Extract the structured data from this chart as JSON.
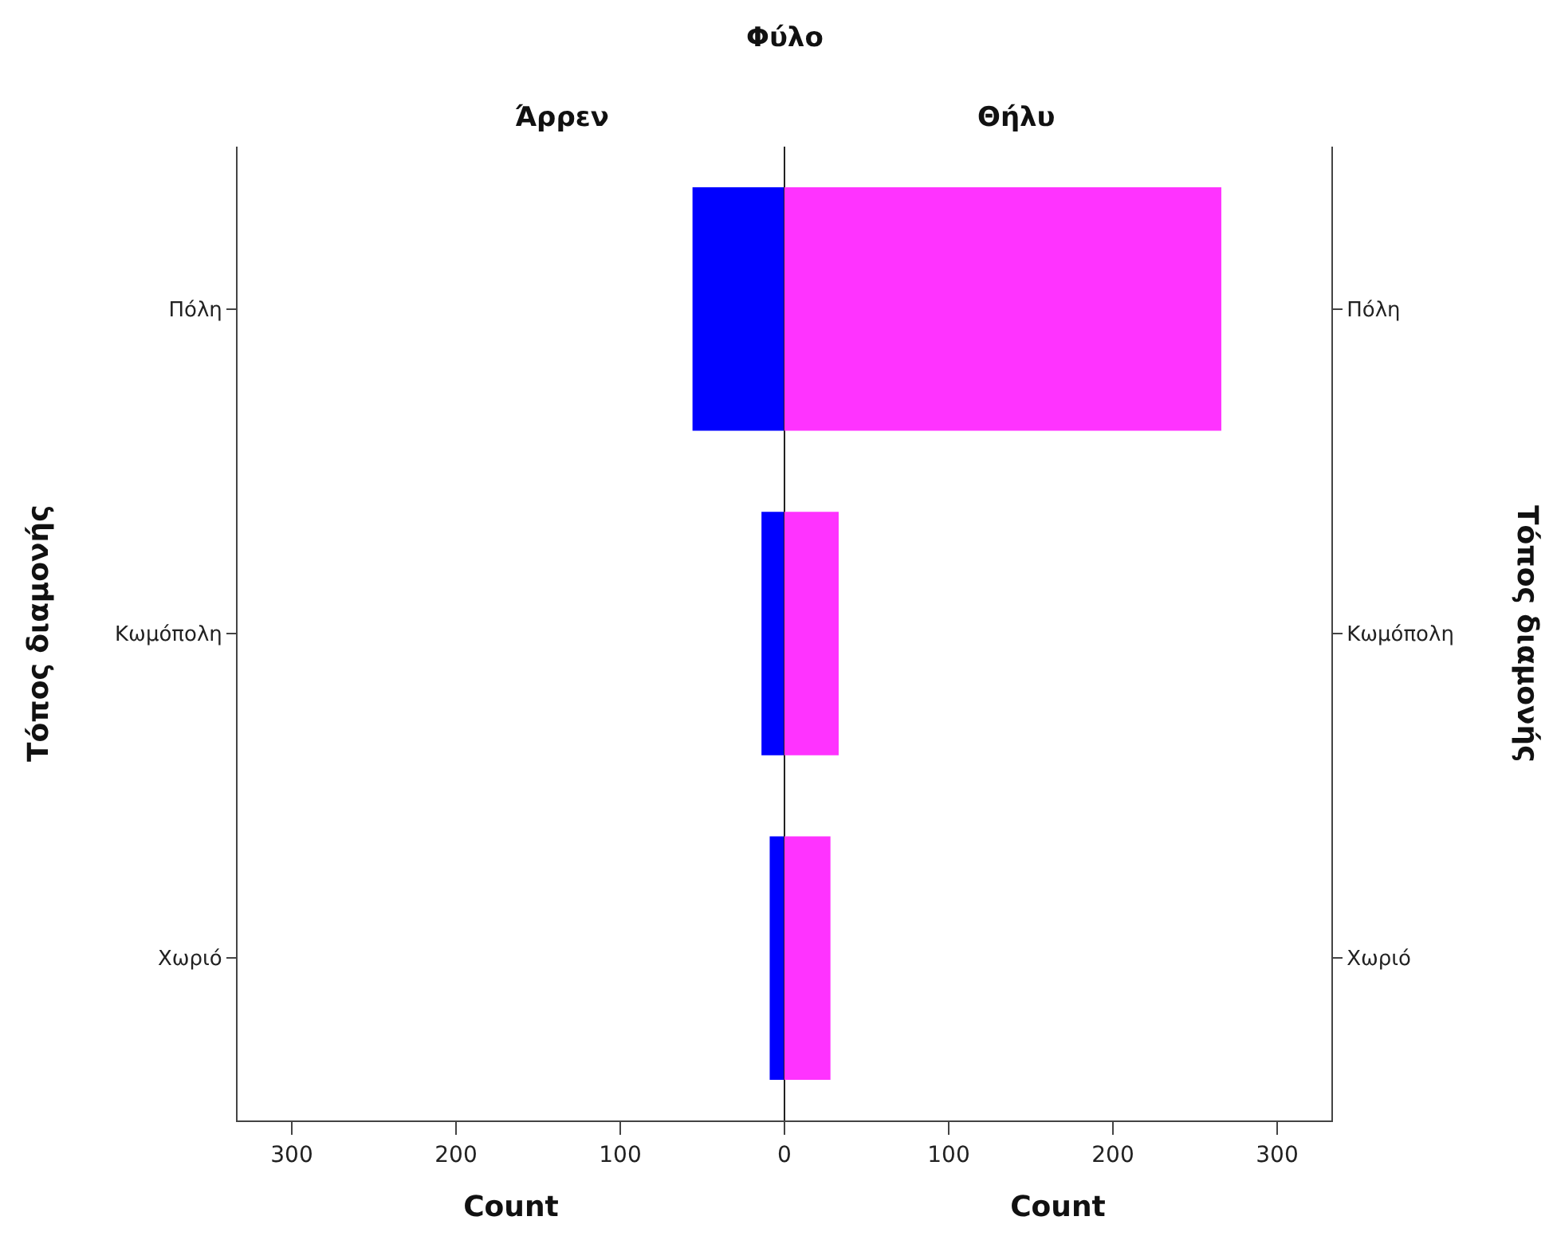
{
  "chart_data": [
    {
      "type": "bar",
      "orientation": "horizontal",
      "title": "Άρρεν",
      "annotations": [
        "Φύλο"
      ],
      "xlabel": "Count",
      "ylabel": "Τόπος διαμονής",
      "categories": [
        "Πόλη",
        "Κωμόπολη",
        "Χωριό"
      ],
      "values": [
        56,
        14,
        9
      ],
      "color": "#0000ff",
      "xlim": [
        333,
        0
      ],
      "xticks": [
        300,
        200,
        100
      ]
    },
    {
      "type": "bar",
      "orientation": "horizontal",
      "title": "Θήλυ",
      "xlabel": "Count",
      "ylabel": "Τόπος διαμονής",
      "categories": [
        "Πόλη",
        "Κωμόπολη",
        "Χωριό"
      ],
      "values": [
        266,
        33,
        28
      ],
      "color": "#ff33ff",
      "xlim": [
        0,
        333
      ],
      "xticks": [
        0,
        100,
        200,
        300
      ]
    }
  ]
}
